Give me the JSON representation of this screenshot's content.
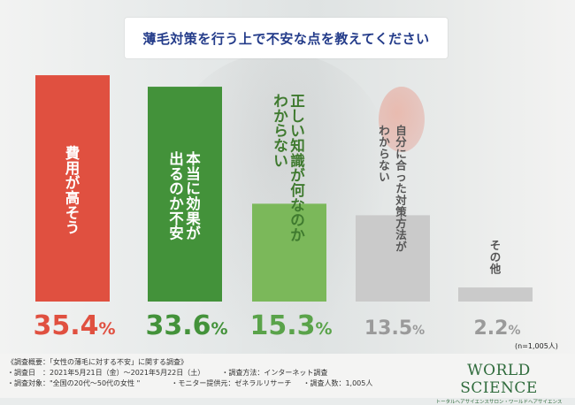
{
  "title": "薄毛対策を行う上で不安な点を教えてください",
  "chart_data": {
    "type": "bar",
    "title": "薄毛対策を行う上で不安な点を教えてください",
    "categories": [
      "費用が高そう",
      "本当に効果が出るのか不安",
      "正しい知識が何なのかわからない",
      "自分に合った対策方法がわからない",
      "その他"
    ],
    "values": [
      35.4,
      33.6,
      15.3,
      13.5,
      2.2
    ],
    "value_labels": [
      "35.4",
      "33.6",
      "15.3",
      "13.5",
      "2.2"
    ],
    "unit": "%",
    "ylim": [
      0,
      40
    ],
    "grid": false,
    "legend": "none",
    "label_columns": [
      [
        "費用が高そう"
      ],
      [
        "本当に効果が",
        "出るのか不安"
      ],
      [
        "正しい知識が何なのか",
        "わからない"
      ],
      [
        "自分に合った対策方法が",
        "わからない"
      ],
      [
        "その他"
      ]
    ],
    "bar_colors": [
      "#e05040",
      "#43923a",
      "#7bb85a",
      "#cacaca",
      "#cacaca"
    ],
    "value_colors": [
      "#e05040",
      "#43923a",
      "#5aa34a",
      "#9a9a9a",
      "#9a9a9a"
    ],
    "label_colors": [
      "#ffffff",
      "#ffffff",
      "#3f7a2f",
      "#555555",
      "#555555"
    ]
  },
  "sample_note": "(n=1,005人)",
  "survey": {
    "line1": "《調査概要：「女性の薄毛に対する不安」に関する調査》",
    "line2a": "・調査日　：2021年5月21日（金）〜2021年5月22日（土）",
    "line2b": "・調査方法：インターネット調査",
    "line3a": "・調査対象：\"全国の20代〜50代の女性 \"",
    "line3b": "・モニター提供元：ゼネラルリサーチ",
    "line3c": "・調査人数：1,005人"
  },
  "brand": {
    "name": "WORLD SCIENCE",
    "tagline": "トータルヘアサイエンスサロン・ワールドヘアサイエンス"
  }
}
